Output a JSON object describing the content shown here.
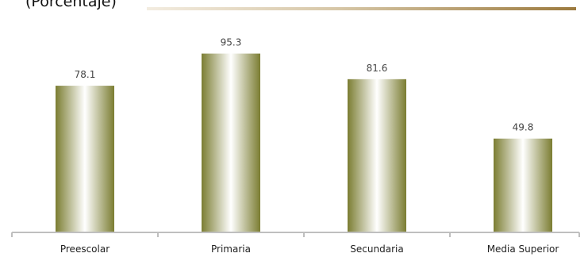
{
  "header": {
    "subtitle": "(Porcentaje)"
  },
  "colors": {
    "bar_edge": "#7b7d32",
    "bar_center": "#ffffff",
    "axis": "#bfbfbf",
    "header_rule_dark": "#9c7a3e"
  },
  "chart_data": {
    "type": "bar",
    "categories": [
      "Preescolar",
      "Primaria",
      "Secundaria",
      "Media Superior"
    ],
    "values": [
      78.1,
      95.3,
      81.6,
      49.8
    ],
    "value_labels": [
      "78.1",
      "95.3",
      "81.6",
      "49.8"
    ],
    "ylim": [
      0,
      100
    ],
    "grid": false,
    "legend": "none"
  }
}
